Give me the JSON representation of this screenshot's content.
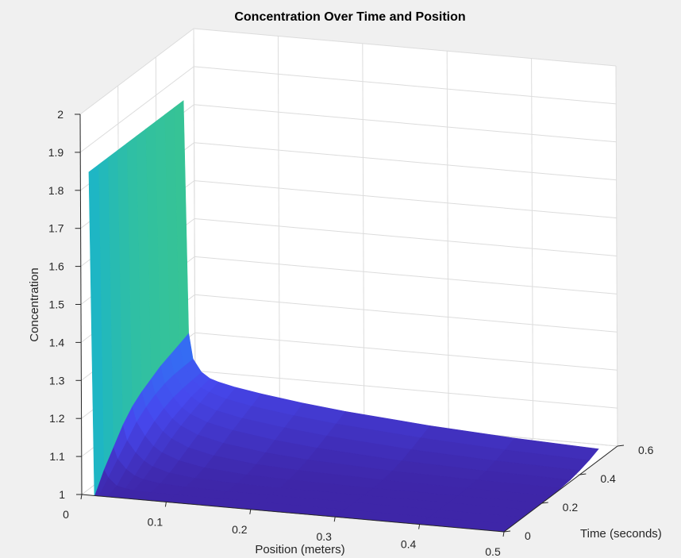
{
  "chart_data": {
    "type": "surface",
    "title": "Concentration Over Time and Position",
    "xlabel": "Position (meters)",
    "ylabel": "Time (seconds)",
    "zlabel": "Concentration",
    "xlim": [
      0,
      0.5
    ],
    "ylim": [
      0,
      0.6
    ],
    "zlim": [
      1,
      2
    ],
    "x_ticks": [
      "0",
      "0.1",
      "0.2",
      "0.3",
      "0.4",
      "0.5"
    ],
    "y_ticks": [
      "0",
      "0.2",
      "0.4",
      "0.6"
    ],
    "z_ticks": [
      "1",
      "1.1",
      "1.2",
      "1.3",
      "1.4",
      "1.5",
      "1.6",
      "1.7",
      "1.8",
      "1.9",
      "2"
    ],
    "grid": true,
    "colormap": "parula",
    "colors": {
      "low": "#3e26a8",
      "mid": "#2e9df5",
      "high": "#f9fb0e"
    },
    "surface": {
      "x": [
        0.01,
        0.015,
        0.02,
        0.03,
        0.04,
        0.05,
        0.07,
        0.1,
        0.15,
        0.2,
        0.3,
        0.4,
        0.5
      ],
      "t": [
        0,
        0.05,
        0.1,
        0.15,
        0.2,
        0.25,
        0.3,
        0.35,
        0.4,
        0.45,
        0.5
      ],
      "z": [
        [
          1.85,
          1.0,
          1.0,
          1.0,
          1.0,
          1.0,
          1.0,
          1.0,
          1.0,
          1.0,
          1.0,
          1.0,
          1.0
        ],
        [
          1.85,
          1.05,
          1.03,
          1.01,
          1.005,
          1.002,
          1.0,
          1.0,
          1.0,
          1.0,
          1.0,
          1.0,
          1.0
        ],
        [
          1.85,
          1.09,
          1.06,
          1.035,
          1.02,
          1.012,
          1.005,
          1.002,
          1.0,
          1.0,
          1.0,
          1.0,
          1.0
        ],
        [
          1.85,
          1.13,
          1.09,
          1.06,
          1.04,
          1.027,
          1.014,
          1.006,
          1.002,
          1.0,
          1.0,
          1.0,
          1.0
        ],
        [
          1.85,
          1.16,
          1.12,
          1.085,
          1.06,
          1.045,
          1.028,
          1.015,
          1.006,
          1.003,
          1.0,
          1.0,
          1.0
        ],
        [
          1.85,
          1.18,
          1.14,
          1.105,
          1.08,
          1.063,
          1.043,
          1.028,
          1.015,
          1.009,
          1.003,
          1.001,
          1.0
        ],
        [
          1.85,
          1.195,
          1.155,
          1.12,
          1.095,
          1.078,
          1.058,
          1.042,
          1.027,
          1.018,
          1.008,
          1.004,
          1.002
        ],
        [
          1.85,
          1.21,
          1.165,
          1.13,
          1.105,
          1.09,
          1.072,
          1.057,
          1.041,
          1.03,
          1.016,
          1.009,
          1.005
        ],
        [
          1.85,
          1.22,
          1.17,
          1.135,
          1.115,
          1.1,
          1.084,
          1.07,
          1.055,
          1.043,
          1.027,
          1.017,
          1.011
        ],
        [
          1.85,
          1.23,
          1.172,
          1.138,
          1.12,
          1.11,
          1.096,
          1.083,
          1.068,
          1.056,
          1.039,
          1.027,
          1.019
        ],
        [
          1.85,
          1.24,
          1.173,
          1.14,
          1.125,
          1.118,
          1.108,
          1.097,
          1.082,
          1.07,
          1.052,
          1.039,
          1.03
        ]
      ]
    }
  }
}
